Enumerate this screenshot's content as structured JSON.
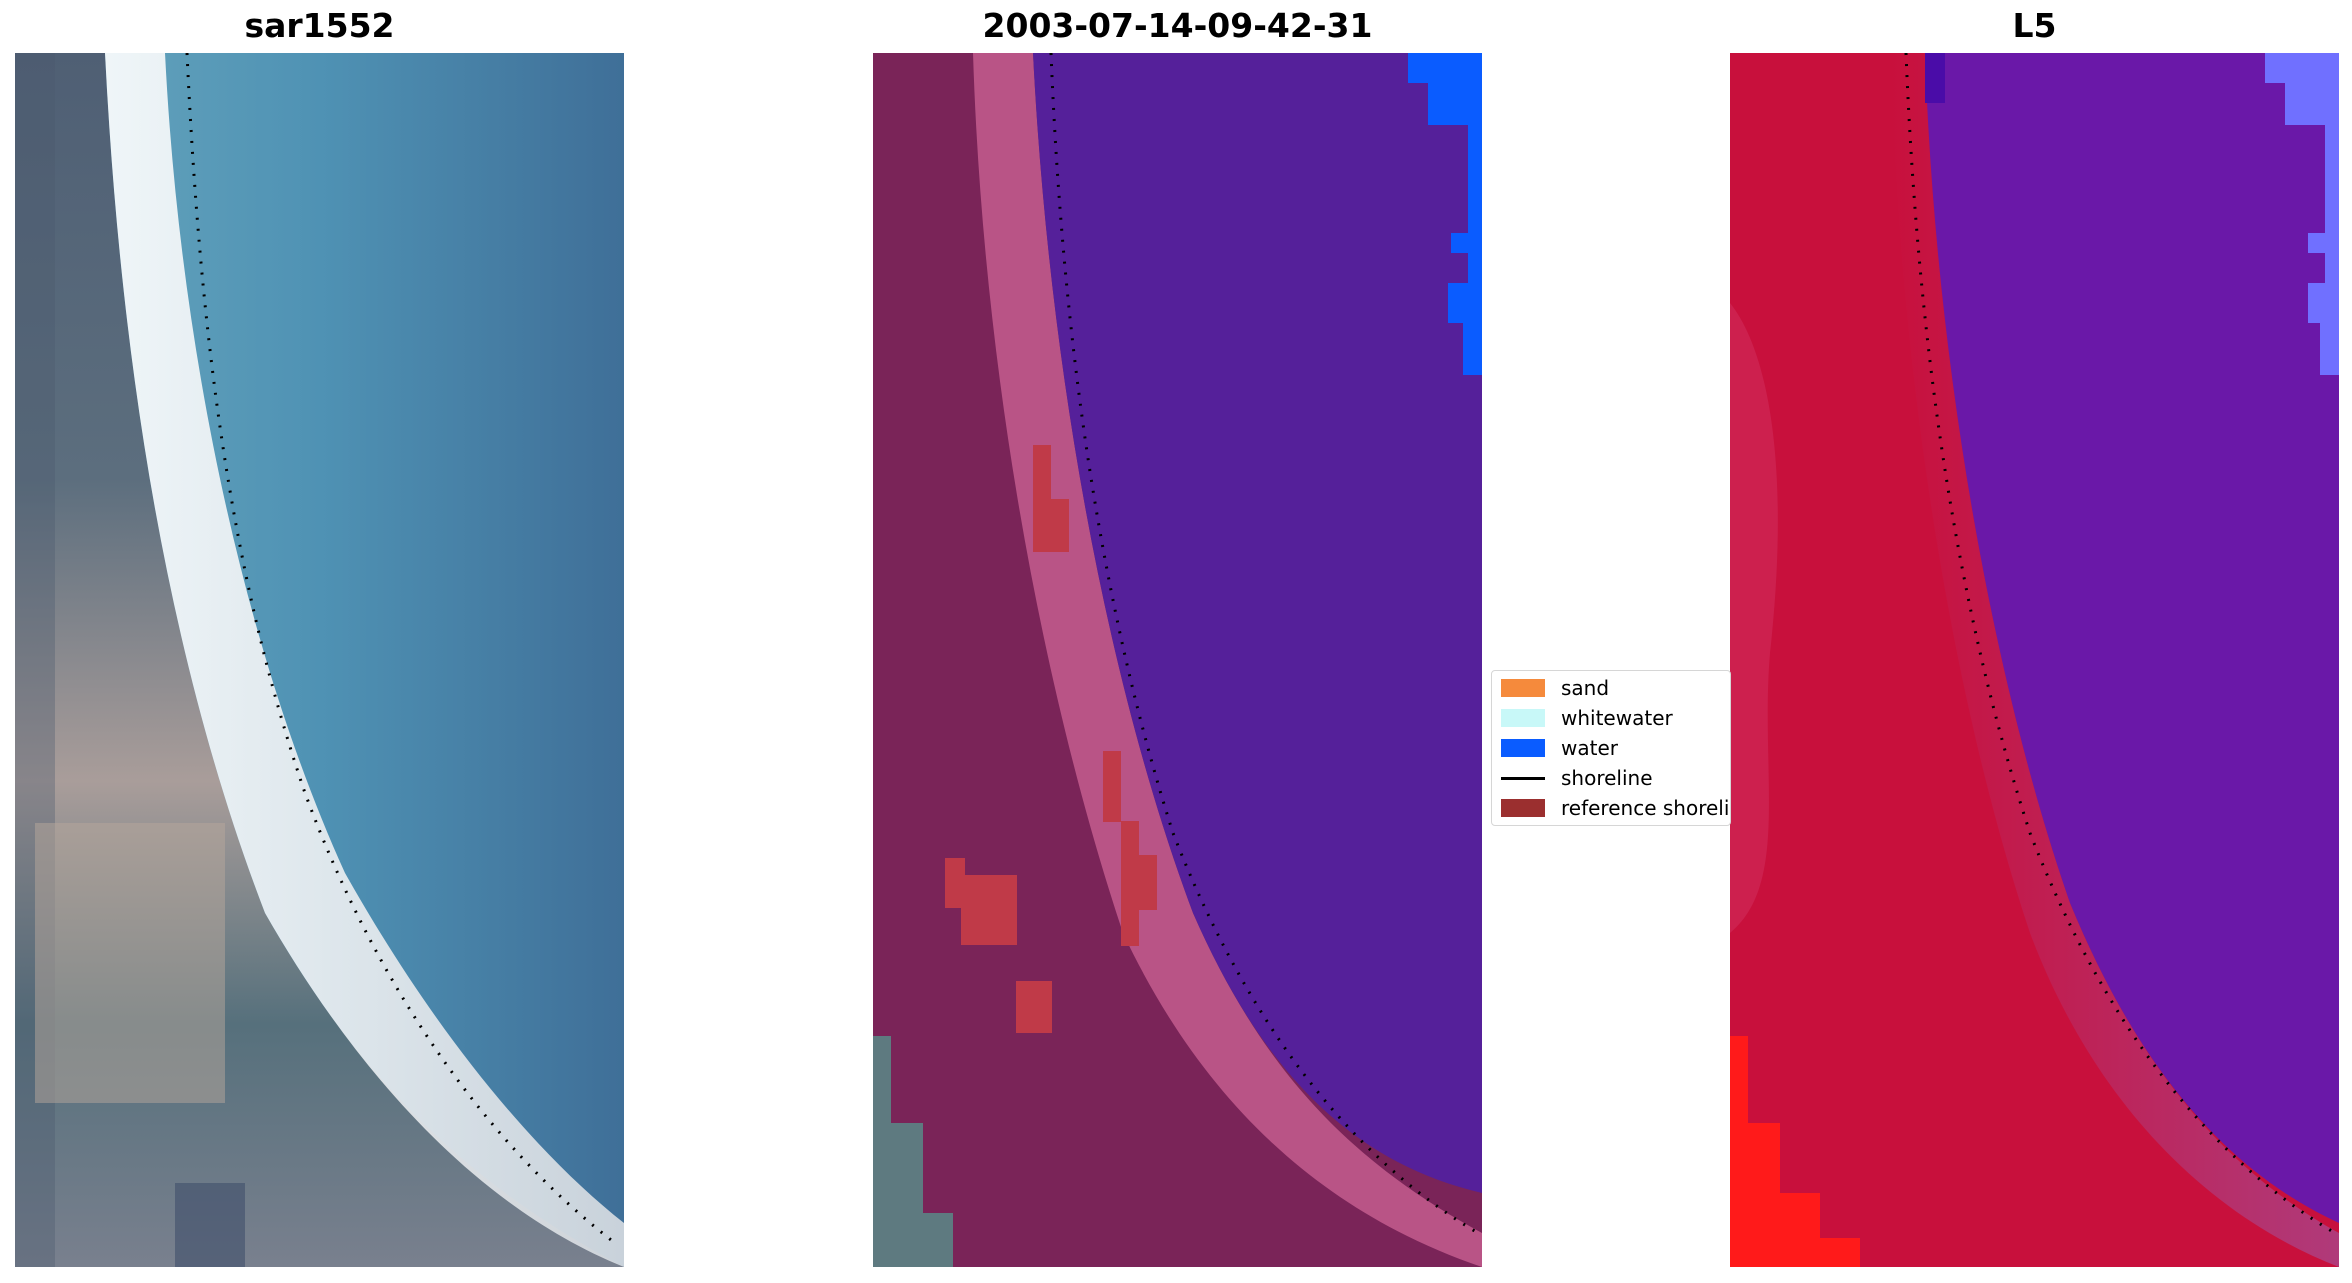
{
  "panels": [
    {
      "title": "sar1552"
    },
    {
      "title": "2003-07-14-09-42-31"
    },
    {
      "title": "L5"
    }
  ],
  "legend": {
    "items": [
      {
        "label": "sand",
        "kind": "patch",
        "color": "#f58a3c"
      },
      {
        "label": "whitewater",
        "kind": "patch",
        "color": "#c8f8f8"
      },
      {
        "label": "water",
        "kind": "patch",
        "color": "#0a5cff"
      },
      {
        "label": "shoreline",
        "kind": "line",
        "color": "#000000"
      },
      {
        "label": "reference shoreline",
        "kind": "patch",
        "color": "#9b2f2f"
      }
    ]
  },
  "colors": {
    "rgb_ocean": "#4f8fb0",
    "rgb_beach": "#f2f2ee",
    "rgb_land": "#5a6a78",
    "class_water_background": "#55209a",
    "class_land": "#7a2458",
    "class_beach": "#c05a8c",
    "class_reference": "#c03a48",
    "class_water_pure": "#0a5cff",
    "prob_land": "#c8103c",
    "prob_water": "#6a18a8",
    "prob_red": "#ff1a1a",
    "prob_blue": "#7070ff"
  }
}
